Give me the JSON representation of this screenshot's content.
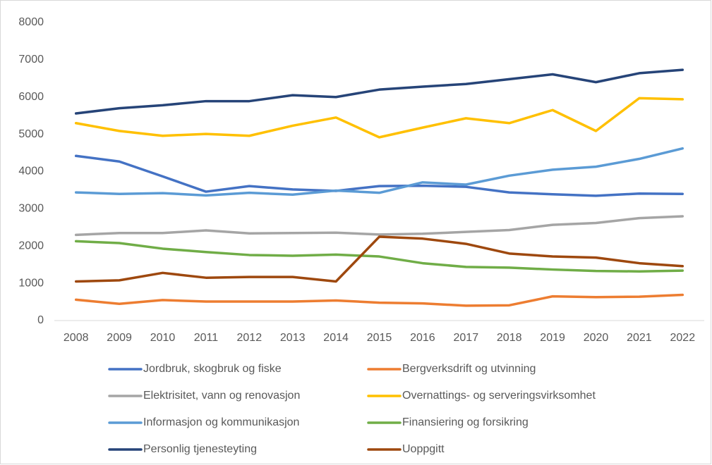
{
  "chart_data": {
    "type": "line",
    "categories": [
      "2008",
      "2009",
      "2010",
      "2011",
      "2012",
      "2013",
      "2014",
      "2015",
      "2016",
      "2017",
      "2018",
      "2019",
      "2020",
      "2021",
      "2022"
    ],
    "ylim": [
      0,
      8000
    ],
    "yticks": [
      0,
      1000,
      2000,
      3000,
      4000,
      5000,
      6000,
      7000,
      8000
    ],
    "grid": false,
    "legend": "bottom",
    "series": [
      {
        "name": "Jordbruk, skogbruk og fiske",
        "color": "#4472c4",
        "values": [
          4420,
          4270,
          3870,
          3460,
          3610,
          3520,
          3480,
          3610,
          3620,
          3590,
          3440,
          3390,
          3350,
          3410,
          3400
        ]
      },
      {
        "name": "Bergverksdrift og utvinning",
        "color": "#ed7d31",
        "values": [
          560,
          450,
          550,
          510,
          510,
          510,
          540,
          480,
          460,
          400,
          410,
          650,
          630,
          640,
          690
        ]
      },
      {
        "name": "Elektrisitet, vann og renovasjon",
        "color": "#a5a5a5",
        "values": [
          2300,
          2350,
          2350,
          2420,
          2340,
          2350,
          2360,
          2310,
          2330,
          2380,
          2430,
          2570,
          2620,
          2750,
          2800
        ]
      },
      {
        "name": "Overnattings- og serveringsvirksomhet",
        "color": "#ffc000",
        "values": [
          5300,
          5090,
          4960,
          5010,
          4960,
          5230,
          5450,
          4920,
          5180,
          5430,
          5300,
          5650,
          5090,
          5970,
          5940
        ]
      },
      {
        "name": "Informasjon og kommunikasjon",
        "color": "#5b9bd5",
        "values": [
          3440,
          3400,
          3420,
          3360,
          3430,
          3380,
          3490,
          3430,
          3710,
          3650,
          3890,
          4050,
          4130,
          4340,
          4620
        ]
      },
      {
        "name": "Finansiering og forsikring",
        "color": "#70ad47",
        "values": [
          2130,
          2080,
          1930,
          1840,
          1760,
          1740,
          1770,
          1720,
          1540,
          1440,
          1420,
          1370,
          1330,
          1320,
          1340
        ]
      },
      {
        "name": "Personlig tjenesteyting",
        "color": "#264478",
        "values": [
          5560,
          5700,
          5780,
          5890,
          5890,
          6050,
          6000,
          6200,
          6280,
          6350,
          6480,
          6610,
          6400,
          6640,
          6730
        ]
      },
      {
        "name": "Uoppgitt",
        "color": "#9e480e",
        "values": [
          1050,
          1080,
          1280,
          1150,
          1170,
          1170,
          1050,
          2250,
          2200,
          2060,
          1800,
          1720,
          1690,
          1540,
          1460
        ]
      }
    ]
  }
}
